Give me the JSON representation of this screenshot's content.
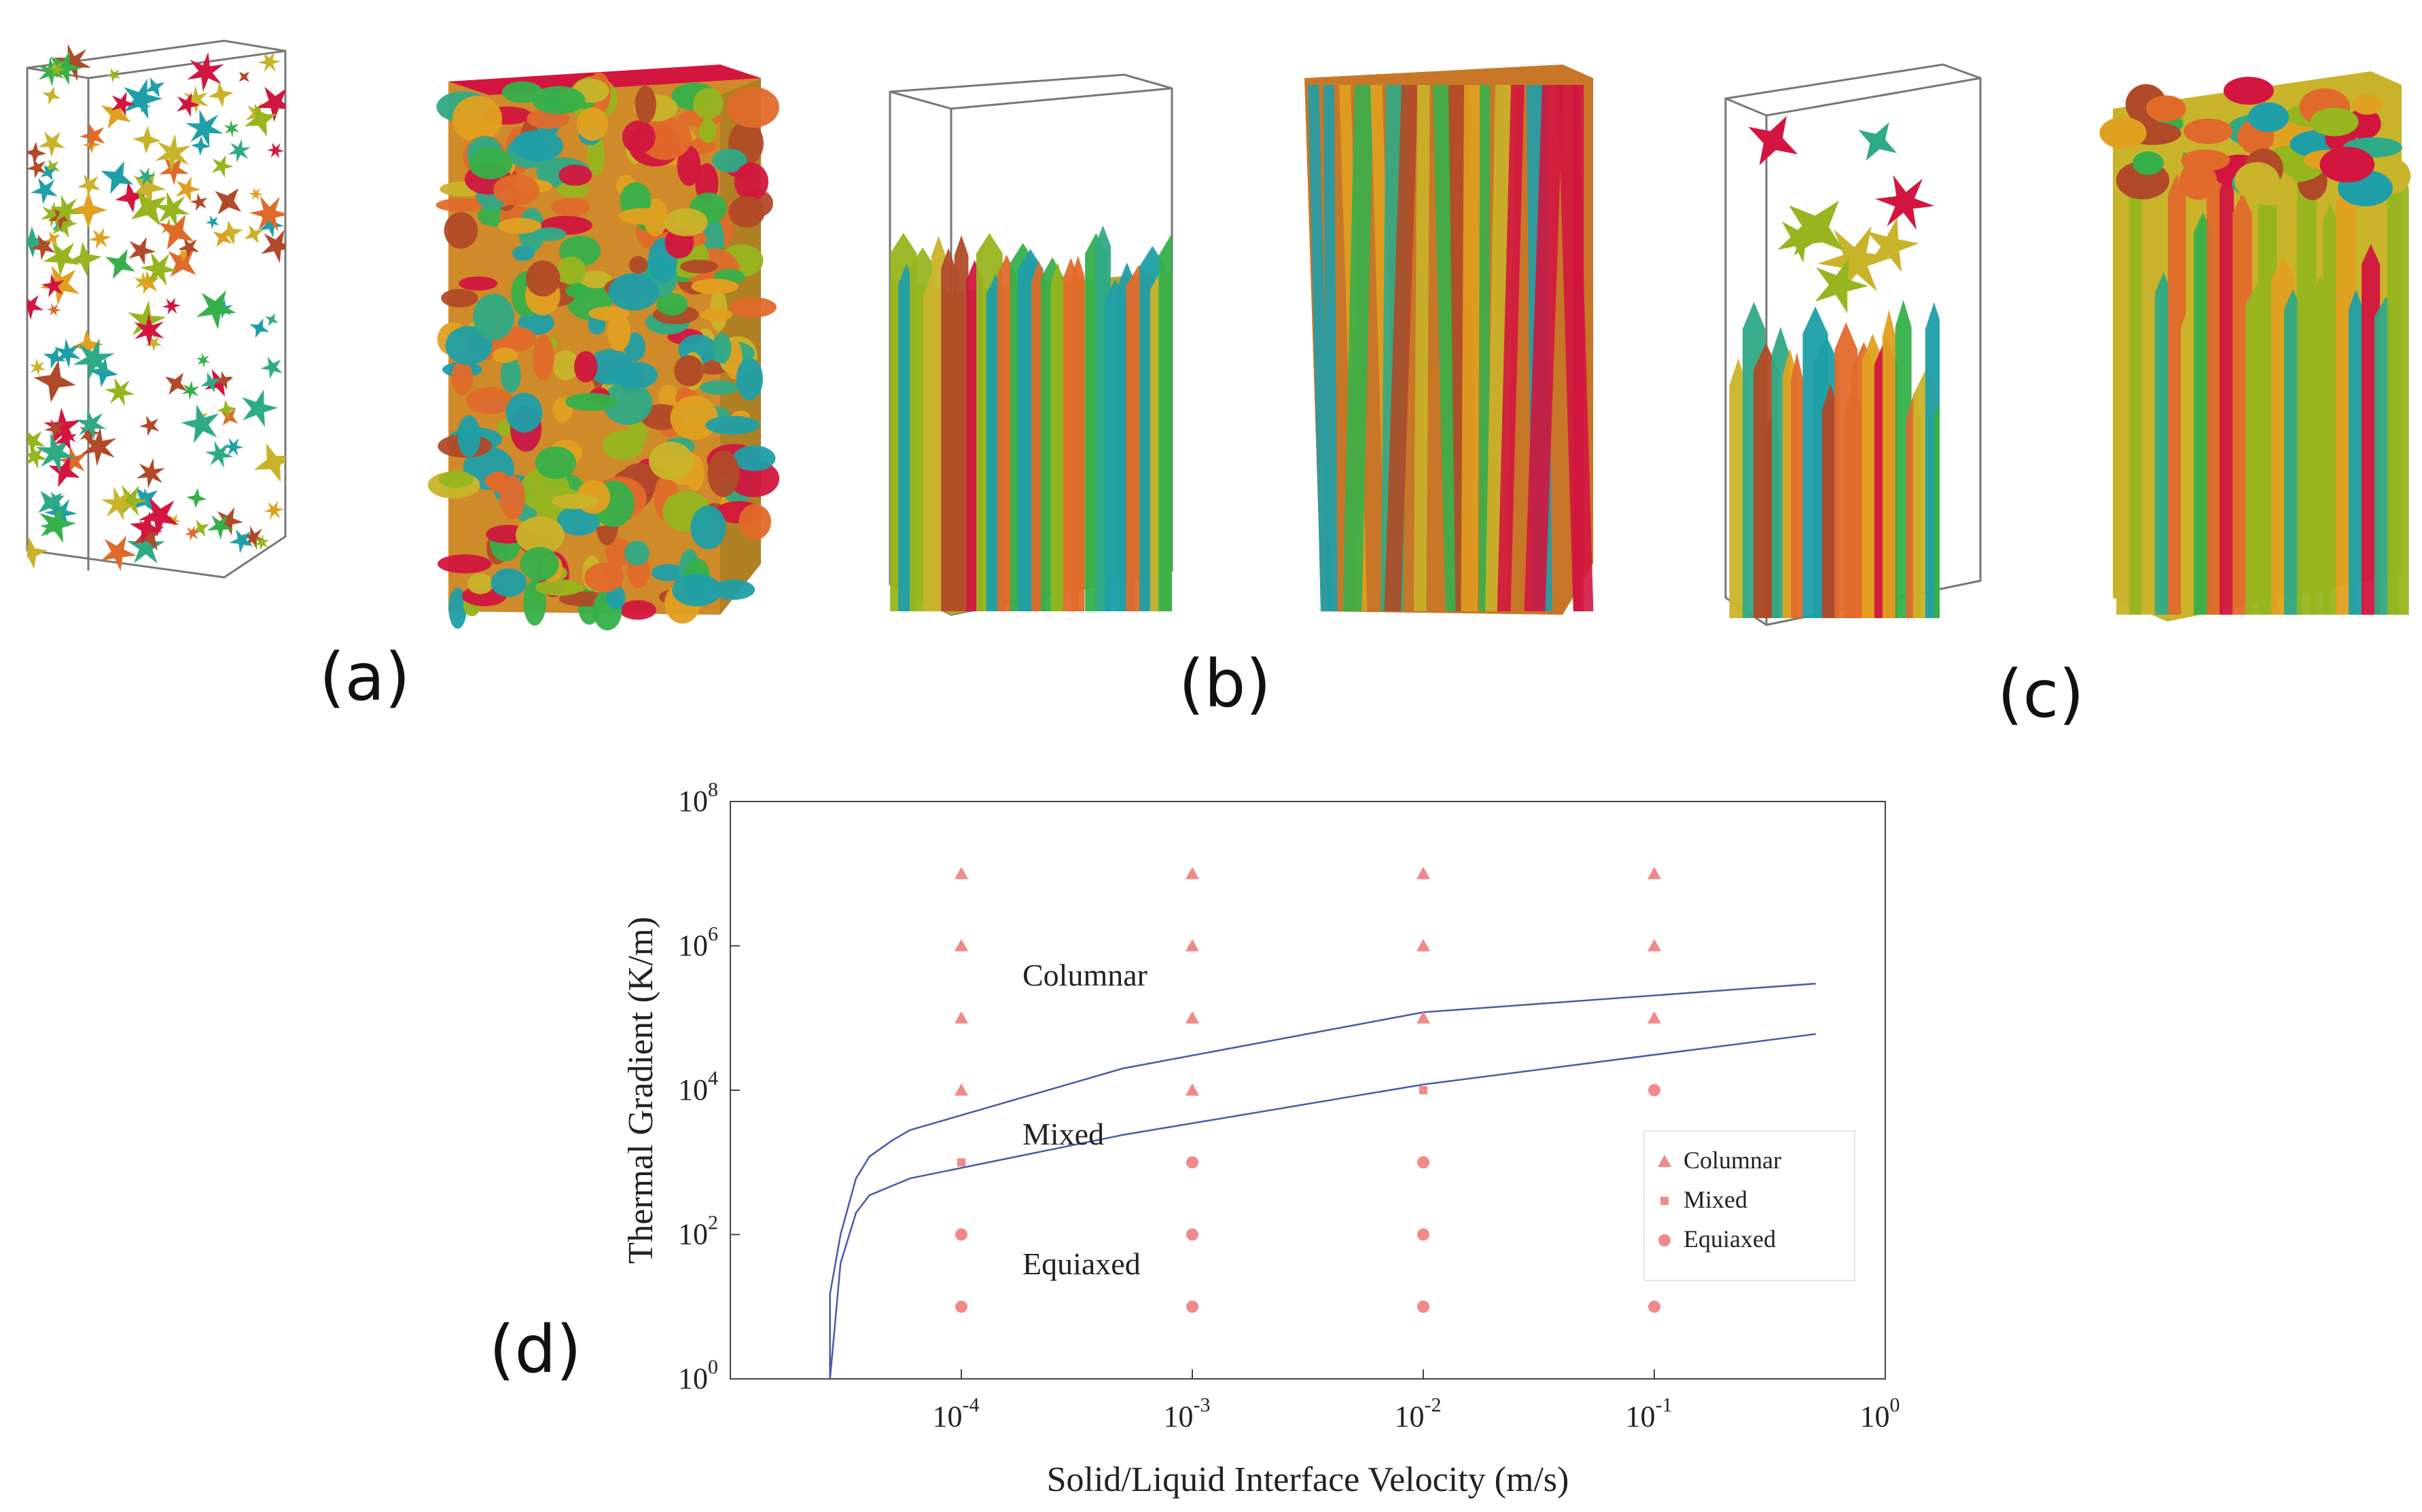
{
  "panel_labels": [
    "(a)",
    "(b)",
    "(c)",
    "(d)"
  ],
  "grain_palette": [
    "#d2163f",
    "#e0a020",
    "#c9b32a",
    "#2faa86",
    "#1f9fa8",
    "#e06a2a",
    "#96b51f",
    "#36b04a",
    "#b14a28"
  ],
  "chart_data": {
    "type": "scatter",
    "xlabel": "Solid/Liquid Interface Velocity (m/s)",
    "ylabel": "Thermal Gradient (K/m)",
    "x_scale": "log",
    "y_scale": "log",
    "xlim": [
      1e-05,
      1
    ],
    "ylim": [
      1,
      100000000
    ],
    "x_ticks": [
      {
        "value": 0.0001,
        "base": "10",
        "exp": "-4"
      },
      {
        "value": 0.001,
        "base": "10",
        "exp": "-3"
      },
      {
        "value": 0.01,
        "base": "10",
        "exp": "-2"
      },
      {
        "value": 0.1,
        "base": "10",
        "exp": "-1"
      },
      {
        "value": 1,
        "base": "10",
        "exp": "0"
      }
    ],
    "y_ticks": [
      {
        "value": 1,
        "base": "10",
        "exp": "0"
      },
      {
        "value": 100,
        "base": "10",
        "exp": "2"
      },
      {
        "value": 10000,
        "base": "10",
        "exp": "4"
      },
      {
        "value": 1000000,
        "base": "10",
        "exp": "6"
      },
      {
        "value": 100000000,
        "base": "10",
        "exp": "8"
      }
    ],
    "series": [
      {
        "name": "Columnar",
        "marker": "triangle",
        "color": "#f08a8a",
        "points": [
          [
            0.0001,
            10000000
          ],
          [
            0.0001,
            1000000
          ],
          [
            0.0001,
            100000
          ],
          [
            0.0001,
            10000
          ],
          [
            0.001,
            10000000
          ],
          [
            0.001,
            1000000
          ],
          [
            0.001,
            100000
          ],
          [
            0.001,
            10000
          ],
          [
            0.01,
            10000000
          ],
          [
            0.01,
            1000000
          ],
          [
            0.01,
            100000
          ],
          [
            0.1,
            10000000
          ],
          [
            0.1,
            1000000
          ],
          [
            0.1,
            100000
          ]
        ]
      },
      {
        "name": "Mixed",
        "marker": "square",
        "color": "#f08a8a",
        "points": [
          [
            0.0001,
            1000
          ],
          [
            0.01,
            10000
          ]
        ]
      },
      {
        "name": "Equiaxed",
        "marker": "circle",
        "color": "#f08a8a",
        "points": [
          [
            0.0001,
            100
          ],
          [
            0.0001,
            10
          ],
          [
            0.001,
            1000
          ],
          [
            0.001,
            100
          ],
          [
            0.001,
            10
          ],
          [
            0.01,
            1000
          ],
          [
            0.01,
            100
          ],
          [
            0.01,
            10
          ],
          [
            0.1,
            10000
          ],
          [
            0.1,
            1000
          ],
          [
            0.1,
            100
          ],
          [
            0.1,
            10
          ]
        ]
      }
    ],
    "boundary_lines": [
      {
        "color": "#4a5aa8",
        "points": [
          [
            2.7e-05,
            1
          ],
          [
            2.7e-05,
            15
          ],
          [
            3e-05,
            100
          ],
          [
            3.5e-05,
            600
          ],
          [
            4e-05,
            1200
          ],
          [
            5e-05,
            2000
          ],
          [
            6e-05,
            2800
          ],
          [
            0.0005,
            20000
          ],
          [
            0.01,
            120000
          ],
          [
            0.5,
            300000
          ]
        ]
      },
      {
        "color": "#4a5aa8",
        "points": [
          [
            2.7e-05,
            1
          ],
          [
            3e-05,
            40
          ],
          [
            3.5e-05,
            200
          ],
          [
            4e-05,
            350
          ],
          [
            6e-05,
            600
          ],
          [
            0.0005,
            2400
          ],
          [
            0.01,
            12000
          ],
          [
            0.5,
            60000
          ]
        ]
      }
    ],
    "region_labels": [
      {
        "text": "Columnar",
        "x": 0.0001,
        "y": 400000
      },
      {
        "text": "Mixed",
        "x": 0.0001,
        "y": 2500
      },
      {
        "text": "Equiaxed",
        "x": 0.0001,
        "y": 40
      }
    ],
    "legend": {
      "position": "lower-right",
      "entries": [
        "Columnar",
        "Mixed",
        "Equiaxed"
      ]
    }
  }
}
